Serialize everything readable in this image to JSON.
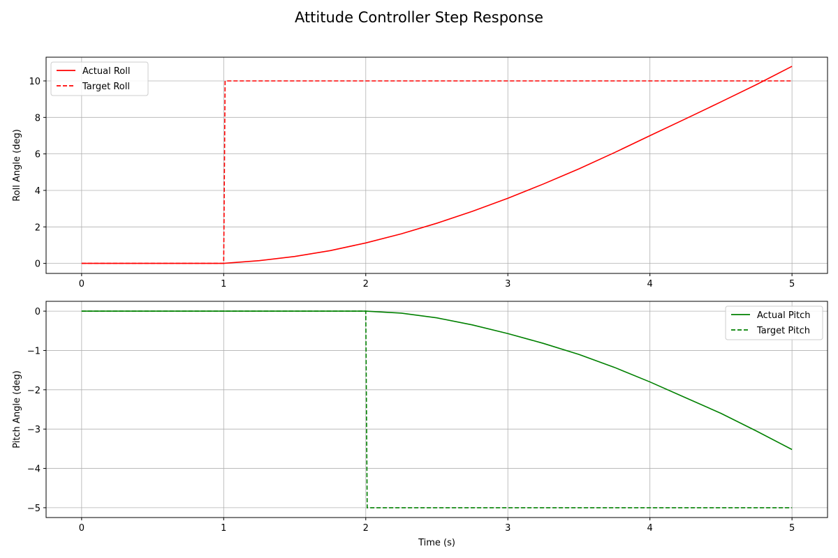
{
  "chart_data": {
    "title": "Attitude Controller Step Response",
    "subplots": [
      {
        "type": "line",
        "ylabel": "Roll Angle (deg)",
        "xlabel": "",
        "xlim": [
          -0.25,
          5.25
        ],
        "ylim": [
          -0.55,
          11.3
        ],
        "xticks": [
          0,
          1,
          2,
          3,
          4,
          5
        ],
        "yticks": [
          0,
          2,
          4,
          6,
          8,
          10
        ],
        "ytick_labels": [
          "0",
          "2",
          "4",
          "6",
          "8",
          "10"
        ],
        "grid": true,
        "legend_position": "top-left",
        "series": [
          {
            "name": "Actual Roll",
            "color": "#ff0000",
            "style": "solid",
            "x": [
              0,
              0.5,
              1.0,
              1.25,
              1.5,
              1.75,
              2.0,
              2.25,
              2.5,
              2.75,
              3.0,
              3.25,
              3.5,
              3.75,
              4.0,
              4.25,
              4.5,
              4.75,
              5.0
            ],
            "y": [
              0,
              0,
              0,
              0.15,
              0.38,
              0.7,
              1.12,
              1.62,
              2.2,
              2.85,
              3.57,
              4.35,
              5.18,
              6.07,
              7.0,
              7.92,
              8.85,
              9.8,
              10.8
            ]
          },
          {
            "name": "Target Roll",
            "color": "#ff0000",
            "style": "dashed",
            "x": [
              0,
              1.0,
              1.01,
              5.0
            ],
            "y": [
              0,
              0,
              10,
              10
            ]
          }
        ]
      },
      {
        "type": "line",
        "ylabel": "Pitch Angle (deg)",
        "xlabel": "Time (s)",
        "xlim": [
          -0.25,
          5.25
        ],
        "ylim": [
          -5.25,
          0.25
        ],
        "xticks": [
          0,
          1,
          2,
          3,
          4,
          5
        ],
        "yticks": [
          0,
          -1,
          -2,
          -3,
          -4,
          -5
        ],
        "ytick_labels": [
          "0",
          "−1",
          "−2",
          "−3",
          "−4",
          "−5"
        ],
        "grid": true,
        "legend_position": "top-right",
        "series": [
          {
            "name": "Actual Pitch",
            "color": "#008000",
            "style": "solid",
            "x": [
              0,
              1.0,
              2.0,
              2.25,
              2.5,
              2.75,
              3.0,
              3.25,
              3.5,
              3.75,
              4.0,
              4.25,
              4.5,
              4.75,
              5.0
            ],
            "y": [
              0,
              0,
              0,
              -0.05,
              -0.17,
              -0.35,
              -0.57,
              -0.82,
              -1.1,
              -1.43,
              -1.8,
              -2.2,
              -2.6,
              -3.05,
              -3.52
            ]
          },
          {
            "name": "Target Pitch",
            "color": "#008000",
            "style": "dashed",
            "x": [
              0,
              2.0,
              2.01,
              5.0
            ],
            "y": [
              0,
              0,
              -5,
              -5
            ]
          }
        ]
      }
    ]
  }
}
